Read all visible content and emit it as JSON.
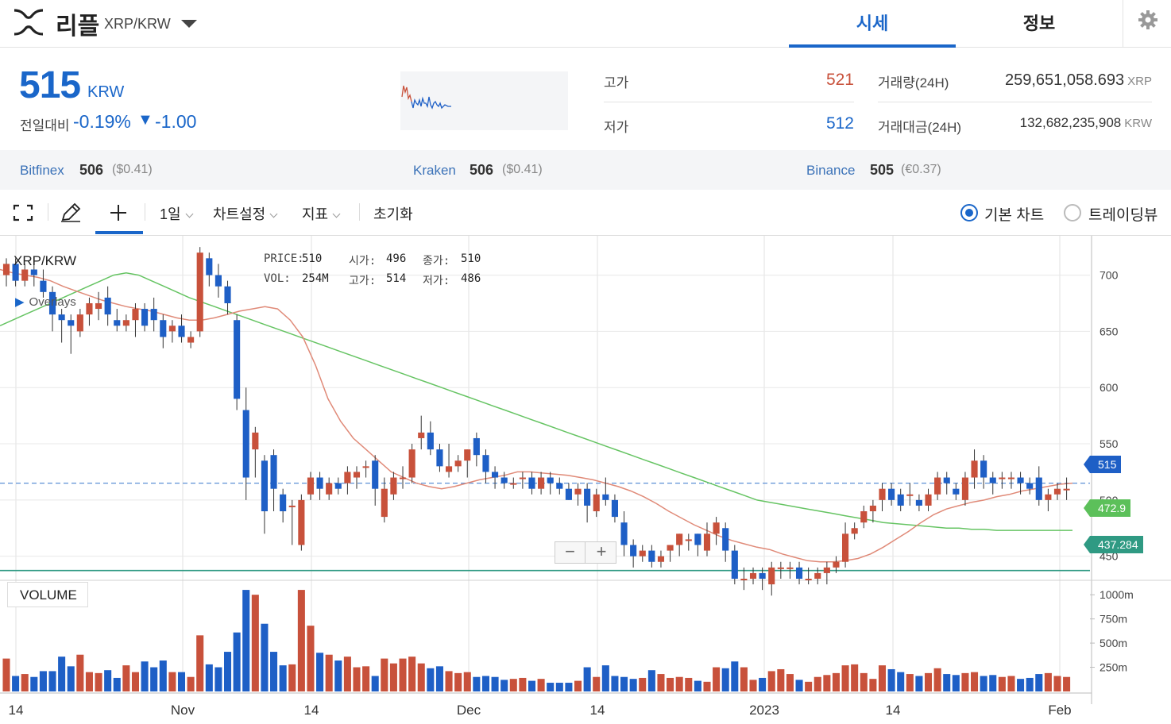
{
  "header": {
    "coin_name": "리플",
    "pair": "XRP/KRW",
    "tabs": [
      {
        "label": "시세",
        "active": true
      },
      {
        "label": "정보",
        "active": false
      }
    ],
    "logo_icon": "xrp-logo-icon",
    "settings_icon": "gear-icon"
  },
  "price_panel": {
    "price": "515",
    "unit": "KRW",
    "compare_label": "전일대비",
    "change_pct": "-0.19%",
    "change_arrow": "▼",
    "change_diff": "-1.00",
    "high_label": "고가",
    "high_value": "521",
    "low_label": "저가",
    "low_value": "512",
    "volume_label": "거래량(24H)",
    "volume_value": "259,651,058.693",
    "volume_unit": "XRP",
    "amount_label": "거래대금(24H)",
    "amount_value": "132,682,235,908",
    "amount_unit": "KRW"
  },
  "exchanges": [
    {
      "name": "Bitfinex",
      "price": "506",
      "sub": "($0.41)"
    },
    {
      "name": "Kraken",
      "price": "506",
      "sub": "($0.41)"
    },
    {
      "name": "Binance",
      "price": "505",
      "sub": "(€0.37)"
    }
  ],
  "toolbar": {
    "fullscreen_icon": "fullscreen-icon",
    "draw_icon": "pencil-icon",
    "crosshair_icon": "crosshair-icon",
    "interval": "1일",
    "chart_settings": "차트설정",
    "indicators": "지표",
    "reset": "초기화",
    "radio_basic": "기본 차트",
    "radio_tradingview": "트레이딩뷰"
  },
  "chart": {
    "pair_label": "XRP/KRW",
    "overlays_label": "Overlays",
    "overlays_arrow": "▶",
    "legend": {
      "price_key": "PRICE:",
      "price_val": "510",
      "open_key": "시가:",
      "open_val": "496",
      "close_key": "종가:",
      "close_val": "510",
      "vol_key": "VOL:",
      "vol_val": "254M",
      "high_key": "고가:",
      "high_val": "514",
      "low_key": "저가:",
      "low_val": "486"
    },
    "volume_label": "VOLUME",
    "zoom_out": "−",
    "zoom_in": "+",
    "price_tags": {
      "last": "515",
      "ma_green": "472.9",
      "line": "437.284"
    },
    "colors": {
      "up": "#c8513b",
      "down": "#1e5fc6",
      "ma_short": "#e08a78",
      "ma_long": "#66c463",
      "line": "#2f9a83",
      "accent": "#1a66c9"
    }
  },
  "chart_data": {
    "type": "candlestick",
    "title": "XRP/KRW",
    "ylim": [
      430,
      735
    ],
    "y_ticks": [
      "700",
      "650",
      "600",
      "550",
      "500",
      "450"
    ],
    "volume_ticks": [
      "1000m",
      "750m",
      "500m",
      "250m"
    ],
    "x_ticks": [
      "14",
      "Nov",
      "14",
      "Dec",
      "14",
      "2023",
      "14",
      "Feb"
    ],
    "horizontal_line": 437.284,
    "last_price": 515,
    "candles": [
      [
        700,
        710,
        690,
        715,
        340
      ],
      [
        710,
        695,
        690,
        715,
        160
      ],
      [
        695,
        705,
        690,
        710,
        180
      ],
      [
        705,
        700,
        690,
        715,
        150
      ],
      [
        695,
        685,
        680,
        705,
        210
      ],
      [
        685,
        665,
        650,
        690,
        210
      ],
      [
        665,
        660,
        640,
        670,
        360
      ],
      [
        660,
        655,
        630,
        665,
        260
      ],
      [
        650,
        665,
        645,
        670,
        380
      ],
      [
        665,
        675,
        655,
        680,
        200
      ],
      [
        670,
        675,
        660,
        685,
        190
      ],
      [
        680,
        665,
        655,
        690,
        220
      ],
      [
        660,
        655,
        650,
        670,
        140
      ],
      [
        655,
        660,
        650,
        665,
        270
      ],
      [
        660,
        670,
        645,
        675,
        200
      ],
      [
        670,
        655,
        650,
        675,
        310
      ],
      [
        670,
        660,
        650,
        680,
        250
      ],
      [
        660,
        645,
        635,
        665,
        320
      ],
      [
        650,
        655,
        640,
        660,
        200
      ],
      [
        655,
        645,
        640,
        665,
        200
      ],
      [
        640,
        645,
        635,
        650,
        150
      ],
      [
        650,
        720,
        645,
        725,
        580
      ],
      [
        715,
        700,
        690,
        720,
        280
      ],
      [
        700,
        690,
        680,
        710,
        250
      ],
      [
        690,
        675,
        665,
        695,
        410
      ],
      [
        660,
        590,
        580,
        665,
        610
      ],
      [
        580,
        520,
        500,
        600,
        1050
      ],
      [
        545,
        560,
        520,
        565,
        1000
      ],
      [
        535,
        490,
        470,
        540,
        700
      ],
      [
        540,
        510,
        490,
        545,
        410
      ],
      [
        505,
        490,
        480,
        510,
        270
      ],
      [
        495,
        495,
        460,
        500,
        280
      ],
      [
        460,
        500,
        455,
        505,
        1050
      ],
      [
        505,
        520,
        500,
        525,
        680
      ],
      [
        520,
        510,
        500,
        525,
        400
      ],
      [
        505,
        515,
        500,
        520,
        380
      ],
      [
        515,
        510,
        505,
        520,
        320
      ],
      [
        515,
        525,
        505,
        530,
        360
      ],
      [
        520,
        525,
        510,
        530,
        250
      ],
      [
        530,
        530,
        520,
        535,
        260
      ],
      [
        535,
        510,
        495,
        540,
        160
      ],
      [
        485,
        510,
        480,
        520,
        340
      ],
      [
        505,
        520,
        500,
        525,
        290
      ],
      [
        520,
        520,
        510,
        530,
        340
      ],
      [
        520,
        545,
        515,
        550,
        360
      ],
      [
        555,
        560,
        545,
        575,
        290
      ],
      [
        560,
        545,
        540,
        570,
        240
      ],
      [
        545,
        530,
        525,
        550,
        260
      ],
      [
        525,
        530,
        520,
        550,
        210
      ],
      [
        530,
        535,
        525,
        540,
        190
      ],
      [
        535,
        545,
        520,
        545,
        200
      ],
      [
        555,
        540,
        530,
        560,
        150
      ],
      [
        540,
        525,
        515,
        545,
        160
      ],
      [
        525,
        520,
        510,
        530,
        150
      ],
      [
        520,
        515,
        510,
        525,
        120
      ],
      [
        515,
        515,
        510,
        520,
        130
      ],
      [
        520,
        520,
        510,
        525,
        140
      ],
      [
        520,
        510,
        505,
        525,
        110
      ],
      [
        510,
        520,
        505,
        525,
        130
      ],
      [
        520,
        515,
        505,
        525,
        90
      ],
      [
        515,
        510,
        505,
        520,
        90
      ],
      [
        510,
        500,
        500,
        515,
        90
      ],
      [
        505,
        510,
        495,
        515,
        110
      ],
      [
        510,
        495,
        480,
        515,
        250
      ],
      [
        490,
        505,
        485,
        510,
        150
      ],
      [
        505,
        500,
        495,
        520,
        270
      ],
      [
        500,
        485,
        480,
        505,
        160
      ],
      [
        480,
        460,
        450,
        490,
        150
      ],
      [
        460,
        450,
        440,
        465,
        130
      ],
      [
        450,
        455,
        445,
        460,
        140
      ],
      [
        455,
        445,
        440,
        460,
        220
      ],
      [
        445,
        450,
        440,
        455,
        180
      ],
      [
        455,
        460,
        445,
        460,
        140
      ],
      [
        460,
        470,
        450,
        470,
        150
      ],
      [
        465,
        465,
        455,
        470,
        140
      ],
      [
        470,
        460,
        450,
        470,
        110
      ],
      [
        455,
        470,
        450,
        480,
        100
      ],
      [
        470,
        480,
        460,
        485,
        250
      ],
      [
        475,
        455,
        445,
        480,
        240
      ],
      [
        455,
        430,
        425,
        460,
        310
      ],
      [
        430,
        430,
        420,
        440,
        250
      ],
      [
        430,
        435,
        425,
        440,
        120
      ],
      [
        435,
        430,
        420,
        440,
        140
      ],
      [
        425,
        440,
        415,
        445,
        210
      ],
      [
        440,
        440,
        430,
        445,
        230
      ],
      [
        440,
        440,
        430,
        445,
        180
      ],
      [
        440,
        430,
        425,
        445,
        120
      ],
      [
        430,
        430,
        425,
        440,
        100
      ],
      [
        430,
        435,
        425,
        440,
        150
      ],
      [
        435,
        440,
        425,
        445,
        170
      ],
      [
        440,
        445,
        435,
        450,
        190
      ],
      [
        445,
        470,
        440,
        480,
        270
      ],
      [
        470,
        475,
        465,
        480,
        280
      ],
      [
        480,
        490,
        475,
        495,
        190
      ],
      [
        490,
        495,
        480,
        500,
        130
      ],
      [
        500,
        510,
        490,
        515,
        270
      ],
      [
        510,
        500,
        495,
        515,
        230
      ],
      [
        505,
        495,
        490,
        510,
        200
      ],
      [
        505,
        505,
        495,
        515,
        180
      ],
      [
        500,
        495,
        490,
        505,
        160
      ],
      [
        495,
        505,
        490,
        510,
        190
      ],
      [
        505,
        520,
        500,
        525,
        240
      ],
      [
        520,
        515,
        505,
        525,
        180
      ],
      [
        510,
        505,
        500,
        515,
        170
      ],
      [
        500,
        520,
        495,
        525,
        190
      ],
      [
        520,
        535,
        510,
        545,
        200
      ],
      [
        535,
        520,
        510,
        540,
        160
      ],
      [
        520,
        515,
        505,
        525,
        170
      ],
      [
        520,
        520,
        510,
        525,
        150
      ],
      [
        520,
        520,
        510,
        525,
        160
      ],
      [
        520,
        515,
        505,
        525,
        130
      ],
      [
        515,
        510,
        505,
        520,
        140
      ],
      [
        520,
        500,
        495,
        530,
        180
      ],
      [
        500,
        505,
        490,
        510,
        190
      ],
      [
        505,
        510,
        500,
        515,
        160
      ],
      [
        510,
        510,
        500,
        520,
        150
      ]
    ],
    "ma_short": [
      705,
      702,
      700,
      698,
      695,
      690,
      686,
      682,
      678,
      675,
      672,
      670,
      668,
      665,
      662,
      660,
      660,
      662,
      665,
      668,
      670,
      672,
      670,
      660,
      645,
      620,
      590,
      570,
      555,
      545,
      535,
      525,
      520,
      515,
      512,
      510,
      512,
      515,
      518,
      520,
      522,
      525,
      525,
      524,
      523,
      522,
      520,
      518,
      515,
      512,
      508,
      503,
      497,
      490,
      484,
      478,
      473,
      468,
      464,
      461,
      458,
      456,
      452,
      449,
      446,
      445,
      445,
      446,
      448,
      452,
      458,
      465,
      472,
      480,
      487,
      492,
      495,
      498,
      500,
      503,
      505,
      508,
      510,
      512,
      514,
      515
    ],
    "ma_long": [
      655,
      660,
      665,
      670,
      675,
      680,
      685,
      690,
      695,
      700,
      702,
      700,
      695,
      690,
      685,
      680,
      676,
      672,
      668,
      664,
      660,
      656,
      652,
      648,
      644,
      640,
      636,
      632,
      628,
      624,
      620,
      616,
      612,
      608,
      604,
      600,
      596,
      592,
      588,
      584,
      580,
      576,
      572,
      568,
      564,
      560,
      556,
      552,
      548,
      544,
      540,
      536,
      532,
      528,
      524,
      520,
      516,
      512,
      508,
      504,
      500,
      498,
      496,
      494,
      492,
      490,
      488,
      486,
      484,
      482,
      480,
      479,
      478,
      477,
      476,
      475,
      475,
      474,
      474,
      473,
      473,
      473,
      473,
      473,
      473,
      473
    ]
  }
}
